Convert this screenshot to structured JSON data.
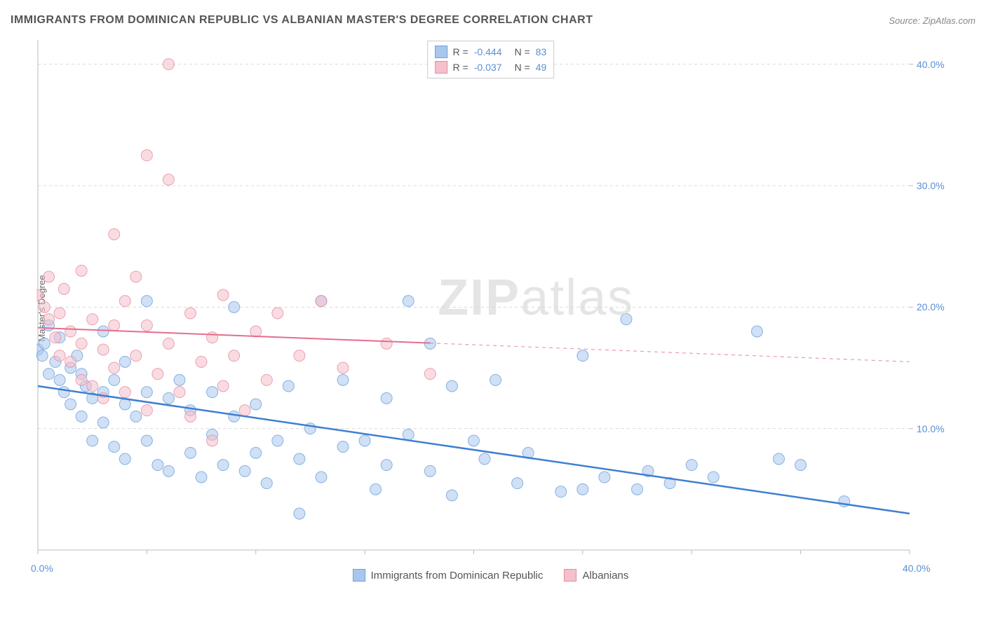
{
  "title": "IMMIGRANTS FROM DOMINICAN REPUBLIC VS ALBANIAN MASTER'S DEGREE CORRELATION CHART",
  "source": "Source: ZipAtlas.com",
  "watermark_a": "ZIP",
  "watermark_b": "atlas",
  "ylabel": "Master's Degree",
  "chart": {
    "type": "scatter",
    "xlim": [
      0,
      40
    ],
    "ylim": [
      0,
      42
    ],
    "x_ticks": [
      0,
      5,
      10,
      15,
      20,
      25,
      30,
      35,
      40
    ],
    "y_ticks": [
      10,
      20,
      30,
      40
    ],
    "x_tick_labels": {
      "0": "0.0%",
      "40": "40.0%"
    },
    "y_tick_labels": {
      "10": "10.0%",
      "20": "20.0%",
      "30": "30.0%",
      "40": "40.0%"
    },
    "grid_color": "#d9d9d9",
    "axis_color": "#bbbbbb",
    "tick_label_color": "#5a8fd6",
    "background_color": "#ffffff",
    "marker_radius": 8,
    "marker_opacity": 0.55,
    "series": [
      {
        "name": "Immigrants from Dominican Republic",
        "color_fill": "#a9c7ec",
        "color_stroke": "#6da2dd",
        "R": "-0.444",
        "N": "83",
        "trend": {
          "x1": 0,
          "y1": 13.5,
          "x2": 40,
          "y2": 3.0,
          "solid_until_x": 40,
          "color": "#3f7fd1",
          "width": 2.5
        },
        "points": [
          [
            0,
            16.5
          ],
          [
            0.2,
            16
          ],
          [
            0.3,
            17
          ],
          [
            0.5,
            18.5
          ],
          [
            0.5,
            14.5
          ],
          [
            0.8,
            15.5
          ],
          [
            1,
            14
          ],
          [
            1,
            17.5
          ],
          [
            1.2,
            13
          ],
          [
            1.5,
            15
          ],
          [
            1.5,
            12
          ],
          [
            1.8,
            16
          ],
          [
            2,
            14.5
          ],
          [
            2,
            11
          ],
          [
            2.2,
            13.5
          ],
          [
            2.5,
            12.5
          ],
          [
            2.5,
            9
          ],
          [
            3,
            18
          ],
          [
            3,
            13
          ],
          [
            3,
            10.5
          ],
          [
            3.5,
            14
          ],
          [
            3.5,
            8.5
          ],
          [
            4,
            12
          ],
          [
            4,
            15.5
          ],
          [
            4,
            7.5
          ],
          [
            4.5,
            11
          ],
          [
            5,
            20.5
          ],
          [
            5,
            13
          ],
          [
            5,
            9
          ],
          [
            5.5,
            7
          ],
          [
            6,
            12.5
          ],
          [
            6,
            6.5
          ],
          [
            6.5,
            14
          ],
          [
            7,
            11.5
          ],
          [
            7,
            8
          ],
          [
            7.5,
            6
          ],
          [
            8,
            13
          ],
          [
            8,
            9.5
          ],
          [
            8.5,
            7
          ],
          [
            9,
            20
          ],
          [
            9,
            11
          ],
          [
            9.5,
            6.5
          ],
          [
            10,
            12
          ],
          [
            10,
            8
          ],
          [
            10.5,
            5.5
          ],
          [
            11,
            9
          ],
          [
            11.5,
            13.5
          ],
          [
            12,
            7.5
          ],
          [
            12,
            3
          ],
          [
            12.5,
            10
          ],
          [
            13,
            20.5
          ],
          [
            13,
            6
          ],
          [
            14,
            14
          ],
          [
            14,
            8.5
          ],
          [
            15,
            9
          ],
          [
            15.5,
            5
          ],
          [
            16,
            12.5
          ],
          [
            16,
            7
          ],
          [
            17,
            20.5
          ],
          [
            17,
            9.5
          ],
          [
            18,
            17
          ],
          [
            18,
            6.5
          ],
          [
            19,
            13.5
          ],
          [
            19,
            4.5
          ],
          [
            20,
            9
          ],
          [
            20.5,
            7.5
          ],
          [
            21,
            14
          ],
          [
            22,
            5.5
          ],
          [
            22.5,
            8
          ],
          [
            24,
            4.8
          ],
          [
            25,
            16
          ],
          [
            25,
            5
          ],
          [
            26,
            6
          ],
          [
            27,
            19
          ],
          [
            27.5,
            5
          ],
          [
            28,
            6.5
          ],
          [
            29,
            5.5
          ],
          [
            30,
            7
          ],
          [
            31,
            6
          ],
          [
            33,
            18
          ],
          [
            34,
            7.5
          ],
          [
            35,
            7
          ],
          [
            37,
            4
          ]
        ]
      },
      {
        "name": "Albanians",
        "color_fill": "#f4c0cb",
        "color_stroke": "#e98ba1",
        "R": "-0.037",
        "N": "49",
        "trend": {
          "x1": 0,
          "y1": 18.3,
          "x2": 40,
          "y2": 15.5,
          "solid_until_x": 18,
          "color": "#e56d8c",
          "width": 2
        },
        "points": [
          [
            0,
            21
          ],
          [
            0.3,
            20
          ],
          [
            0.5,
            19
          ],
          [
            0.5,
            22.5
          ],
          [
            0.8,
            17.5
          ],
          [
            1,
            19.5
          ],
          [
            1,
            16
          ],
          [
            1.2,
            21.5
          ],
          [
            1.5,
            18
          ],
          [
            1.5,
            15.5
          ],
          [
            2,
            23
          ],
          [
            2,
            17
          ],
          [
            2,
            14
          ],
          [
            2.5,
            19
          ],
          [
            2.5,
            13.5
          ],
          [
            3,
            16.5
          ],
          [
            3,
            12.5
          ],
          [
            3.5,
            26
          ],
          [
            3.5,
            18.5
          ],
          [
            3.5,
            15
          ],
          [
            4,
            20.5
          ],
          [
            4,
            13
          ],
          [
            4.5,
            22.5
          ],
          [
            4.5,
            16
          ],
          [
            5,
            18.5
          ],
          [
            5,
            11.5
          ],
          [
            5,
            32.5
          ],
          [
            5.5,
            14.5
          ],
          [
            6,
            30.5
          ],
          [
            6,
            40
          ],
          [
            6,
            17
          ],
          [
            6.5,
            13
          ],
          [
            7,
            19.5
          ],
          [
            7,
            11
          ],
          [
            7.5,
            15.5
          ],
          [
            8,
            17.5
          ],
          [
            8,
            9
          ],
          [
            8.5,
            21
          ],
          [
            8.5,
            13.5
          ],
          [
            9,
            16
          ],
          [
            9.5,
            11.5
          ],
          [
            10,
            18
          ],
          [
            10.5,
            14
          ],
          [
            11,
            19.5
          ],
          [
            12,
            16
          ],
          [
            13,
            20.5
          ],
          [
            14,
            15
          ],
          [
            16,
            17
          ],
          [
            18,
            14.5
          ]
        ]
      }
    ]
  },
  "legend_bottom": [
    {
      "label": "Immigrants from Dominican Republic",
      "fill": "#a9c7ec",
      "stroke": "#6da2dd"
    },
    {
      "label": "Albanians",
      "fill": "#f4c0cb",
      "stroke": "#e98ba1"
    }
  ]
}
